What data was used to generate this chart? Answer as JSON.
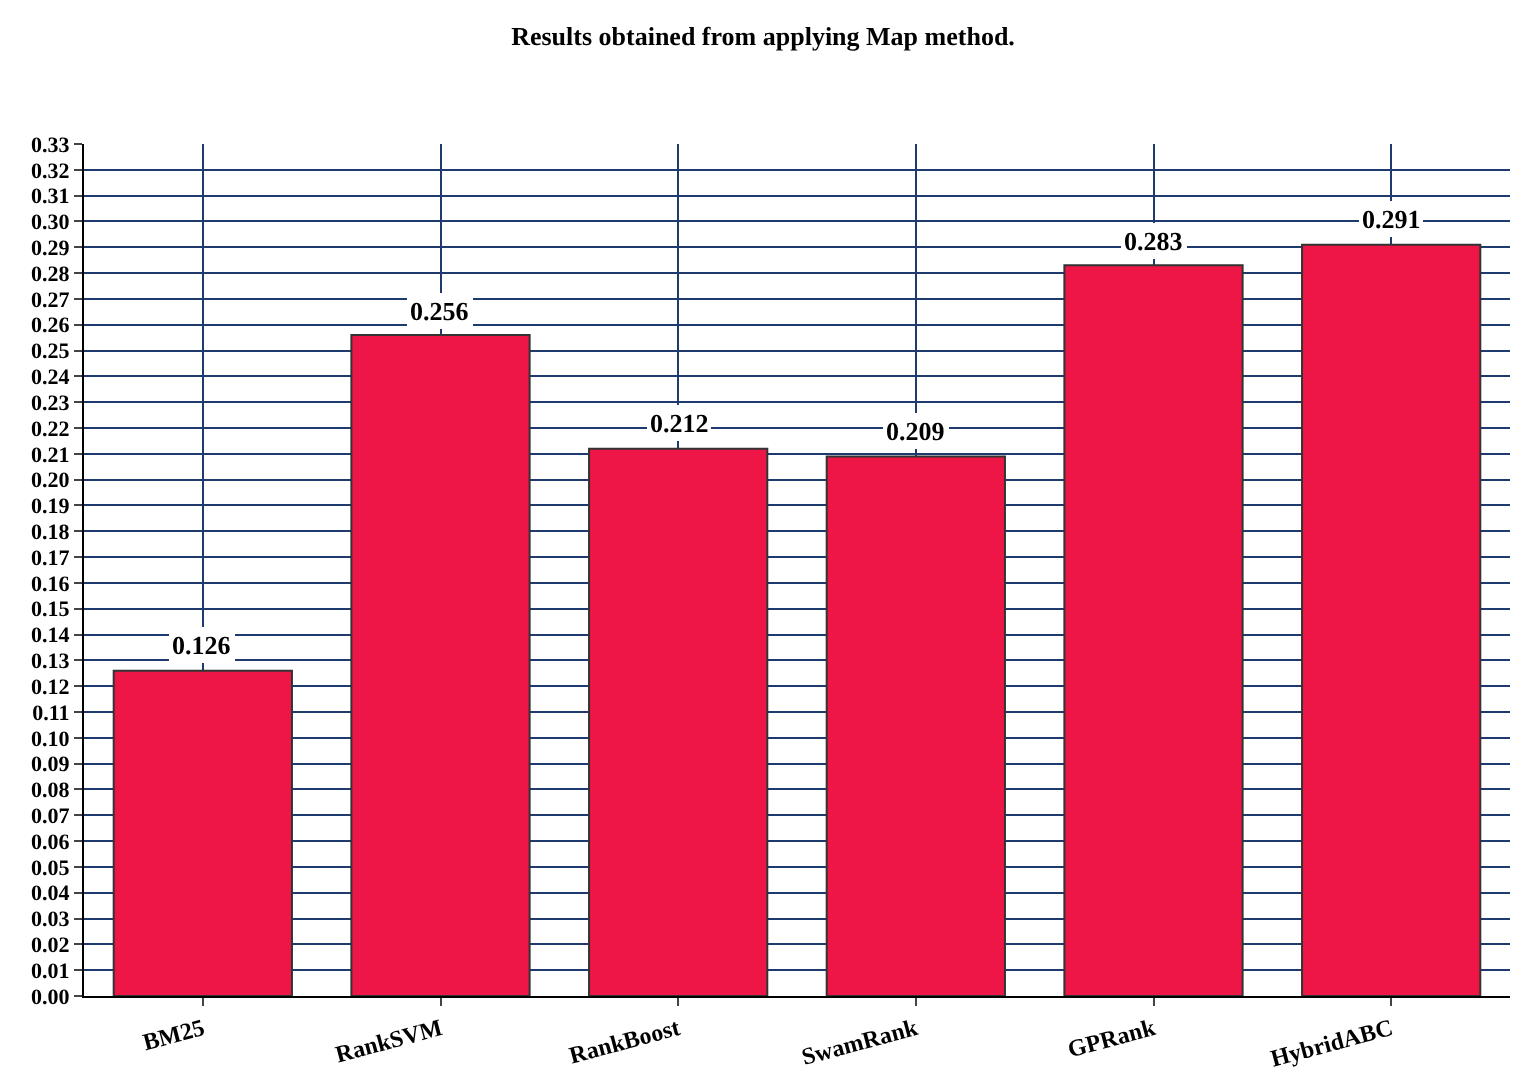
{
  "chart_data": {
    "type": "bar",
    "title": "Results obtained from applying Map method.",
    "categories": [
      "BM25",
      "RankSVM",
      "RankBoost",
      "SwamRank",
      "GPRank",
      "HybridABC"
    ],
    "values": [
      0.126,
      0.256,
      0.212,
      0.209,
      0.283,
      0.291
    ],
    "color": "#ee1646",
    "data_labels": true,
    "grid": true,
    "ylim": [
      0,
      0.33
    ],
    "yticks": [
      {
        "value": 0,
        "label": "0.00"
      },
      {
        "value": 0.01,
        "label": "0.01"
      },
      {
        "value": 0.02,
        "label": "0.02"
      },
      {
        "value": 0.03,
        "label": "0.03"
      },
      {
        "value": 0.04,
        "label": "0.04"
      },
      {
        "value": 0.05,
        "label": "0.05"
      },
      {
        "value": 0.06,
        "label": "0.06"
      },
      {
        "value": 0.07,
        "label": "0.07"
      },
      {
        "value": 0.08,
        "label": "0.08"
      },
      {
        "value": 0.09,
        "label": "0.09"
      },
      {
        "value": 0.1,
        "label": "0.10"
      },
      {
        "value": 0.11,
        "label": "0.11"
      },
      {
        "value": 0.12,
        "label": "0.12"
      },
      {
        "value": 0.13,
        "label": "0.13"
      },
      {
        "value": 0.14,
        "label": "0.14"
      },
      {
        "value": 0.15,
        "label": "0.15"
      },
      {
        "value": 0.16,
        "label": "0.16"
      },
      {
        "value": 0.17,
        "label": "0.17"
      },
      {
        "value": 0.18,
        "label": "0.18"
      },
      {
        "value": 0.19,
        "label": "0.19"
      },
      {
        "value": 0.2,
        "label": "0.20"
      },
      {
        "value": 0.21,
        "label": "0.21"
      },
      {
        "value": 0.22,
        "label": "0.22"
      },
      {
        "value": 0.23,
        "label": "0.23"
      },
      {
        "value": 0.24,
        "label": "0.24"
      },
      {
        "value": 0.25,
        "label": "0.25"
      },
      {
        "value": 0.26,
        "label": "0.26"
      },
      {
        "value": 0.27,
        "label": "0.27"
      },
      {
        "value": 0.28,
        "label": "0.28"
      },
      {
        "value": 0.29,
        "label": "0.29"
      },
      {
        "value": 0.3,
        "label": "0.30"
      },
      {
        "value": 0.31,
        "label": "0.31"
      },
      {
        "value": 0.32,
        "label": "0.32"
      },
      {
        "value": 0.33,
        "label": "0.33"
      }
    ]
  }
}
